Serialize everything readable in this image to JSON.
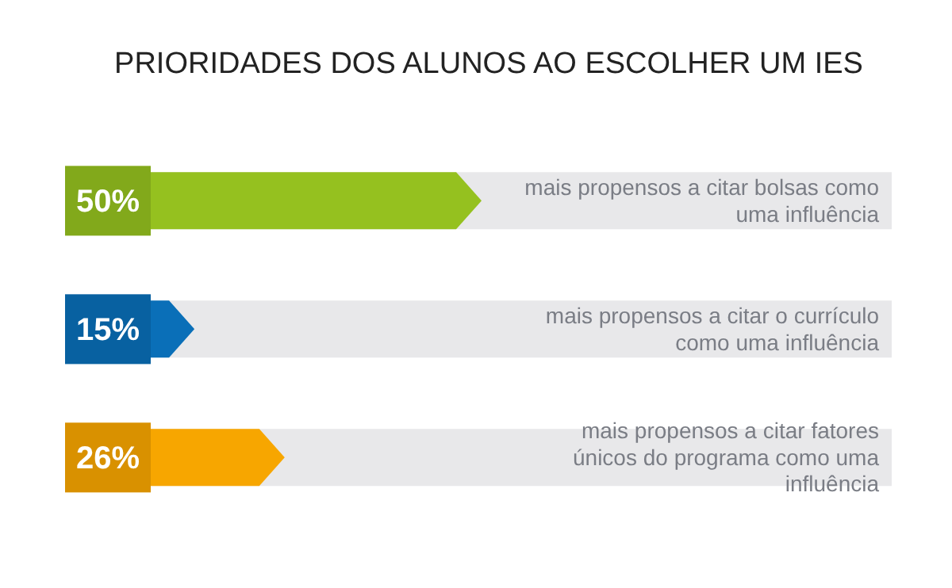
{
  "chart_data": {
    "type": "bar",
    "orientation": "horizontal",
    "title": "PRIORIDADES DOS ALUNOS AO ESCOLHER UM IES",
    "categories": [
      "mais propensos a citar bolsas como uma influência",
      "mais propensos a citar o currículo como uma influência",
      "mais propensos a citar fatores únicos do programa como uma influência"
    ],
    "values": [
      50,
      15,
      26
    ],
    "colors": [
      "#95c11f",
      "#0a6fb8",
      "#f7a600"
    ],
    "value_labels": [
      "50%",
      "15%",
      "26%"
    ],
    "xlim": [
      0,
      100
    ],
    "tick_labels": false,
    "grid": false,
    "legend": false
  }
}
